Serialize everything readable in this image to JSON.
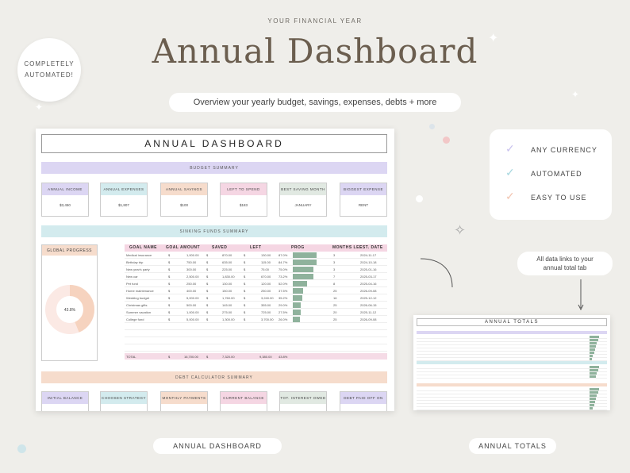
{
  "header": {
    "kicker": "YOUR FINANCIAL YEAR",
    "title": "Annual Dashboard",
    "subtitle": "Overview your yearly budget, savings, expenses, debts + more"
  },
  "badge": {
    "line1": "COMPLETELY",
    "line2": "AUTOMATED!"
  },
  "dashboard": {
    "title": "ANNUAL DASHBOARD",
    "budget_band": "BUDGET SUMMARY",
    "budget_cards": [
      {
        "label": "ANNUAL INCOME",
        "value": "$3,450",
        "color": "#dcd6f3"
      },
      {
        "label": "ANNUAL EXPENSES",
        "value": "$1,807",
        "color": "#d3ebee"
      },
      {
        "label": "ANNUAL SAVINGS",
        "value": "$100",
        "color": "#f6dccc"
      },
      {
        "label": "LEFT TO SPEND",
        "value": "$183",
        "color": "#f5d6e3"
      },
      {
        "label": "BEST SAVING MONTH",
        "value": "JANUARY",
        "color": "#e1e9e2"
      },
      {
        "label": "BIGGEST EXPENSE",
        "value": "RENT",
        "color": "#dcd6f3"
      }
    ],
    "sinking_band": "SINKING FUNDS SUMMARY",
    "global_progress": {
      "label": "GLOBAL PROGRESS",
      "percent": "43.8%",
      "fraction": 0.438
    },
    "funds_headers": [
      "GOAL NAME",
      "GOAL AMOUNT",
      "SAVED",
      "LEFT",
      "PROG",
      "MONTHS LEF",
      "EST. DATE"
    ],
    "funds": [
      {
        "name": "Medical insurance",
        "goal": "1,000.00",
        "saved": "870.00",
        "left": "130.00",
        "pct": "87.0%",
        "p": 0.87,
        "months": "3",
        "date": "2024-11-17"
      },
      {
        "name": "Birthday trip",
        "goal": "750.00",
        "saved": "635.00",
        "left": "115.00",
        "pct": "84.7%",
        "p": 0.847,
        "months": "3",
        "date": "2024-10-18"
      },
      {
        "name": "New year's party",
        "goal": "300.00",
        "saved": "225.00",
        "left": "75.00",
        "pct": "75.0%",
        "p": 0.75,
        "months": "3",
        "date": "2025-01-16"
      },
      {
        "name": "New car",
        "goal": "2,500.00",
        "saved": "1,830.00",
        "left": "670.00",
        "pct": "73.2%",
        "p": 0.732,
        "months": "7",
        "date": "2025-03-17"
      },
      {
        "name": "Pet fund",
        "goal": "250.00",
        "saved": "130.00",
        "left": "120.00",
        "pct": "52.0%",
        "p": 0.52,
        "months": "8",
        "date": "2025-04-16"
      },
      {
        "name": "Home maintenance",
        "goal": "400.00",
        "saved": "150.00",
        "left": "250.00",
        "pct": "37.5%",
        "p": 0.375,
        "months": "25",
        "date": "2026-09-08"
      },
      {
        "name": "Wedding budget",
        "goal": "5,000.00",
        "saved": "1,760.00",
        "left": "3,240.00",
        "pct": "35.2%",
        "p": 0.352,
        "months": "16",
        "date": "2025-12-12"
      },
      {
        "name": "Christmas gifts",
        "goal": "500.00",
        "saved": "145.00",
        "left": "355.00",
        "pct": "29.0%",
        "p": 0.29,
        "months": "25",
        "date": "2026-06-15"
      },
      {
        "name": "Summer vacation",
        "goal": "1,000.00",
        "saved": "275.00",
        "left": "725.00",
        "pct": "27.5%",
        "p": 0.275,
        "months": "20",
        "date": "2025-11-12"
      },
      {
        "name": "College fund",
        "goal": "5,000.00",
        "saved": "1,300.00",
        "left": "3,700.00",
        "pct": "26.0%",
        "p": 0.26,
        "months": "25",
        "date": "2026-09-08"
      }
    ],
    "total": {
      "label": "TOTAL",
      "goal": "16,700.00",
      "saved": "7,320.00",
      "left": "9,380.00",
      "pct": "43.8%"
    },
    "debt_band": "DEBT CALCULATOR SUMMARY",
    "debt_cards": [
      {
        "label": "INITIAL BALANCE",
        "color": "#dcd6f3"
      },
      {
        "label": "CHOOSEN STRATEGY",
        "color": "#d3ebee"
      },
      {
        "label": "MONTHLY PAYMENTS",
        "color": "#f6dccc"
      },
      {
        "label": "CURRENT BALANCE",
        "color": "#f5d6e3"
      },
      {
        "label": "TOT. INTEREST OWED",
        "color": "#e1e9e2"
      },
      {
        "label": "DEBT PAID OFF ON",
        "color": "#dcd6f3"
      }
    ]
  },
  "features": [
    {
      "label": "ANY CURRENCY",
      "color": "#c9c2ee"
    },
    {
      "label": "AUTOMATED",
      "color": "#a7d7df"
    },
    {
      "label": "EASY TO USE",
      "color": "#f2c4b0"
    }
  ],
  "note": {
    "line1": "All data links to your",
    "line2": "annual total tab"
  },
  "totals": {
    "title": "ANNUAL TOTALS"
  },
  "captions": {
    "left": "ANNUAL DASHBOARD",
    "right": "ANNUAL TOTALS"
  }
}
